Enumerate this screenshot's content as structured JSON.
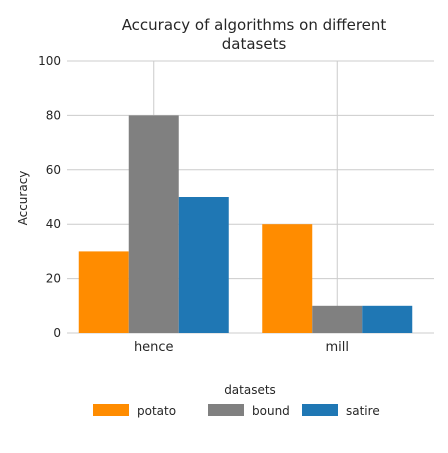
{
  "chart_data": {
    "type": "bar",
    "title": "Accuracy of algorithms on different datasets",
    "title_lines": [
      "Accuracy of algorithms on different",
      "datasets"
    ],
    "xlabel": "datasets",
    "ylabel": "Accuracy",
    "categories": [
      "hence",
      "mill"
    ],
    "series": [
      {
        "name": "potato",
        "values": [
          30,
          40
        ],
        "color": "#ff8c00"
      },
      {
        "name": "bound",
        "values": [
          80,
          10
        ],
        "color": "#808080"
      },
      {
        "name": "satire",
        "values": [
          50,
          10
        ],
        "color": "#1f77b4"
      }
    ],
    "ylim": [
      0,
      100
    ],
    "yticks": [
      0,
      20,
      40,
      60,
      80,
      100
    ],
    "grid": true,
    "legend_position": "bottom"
  }
}
